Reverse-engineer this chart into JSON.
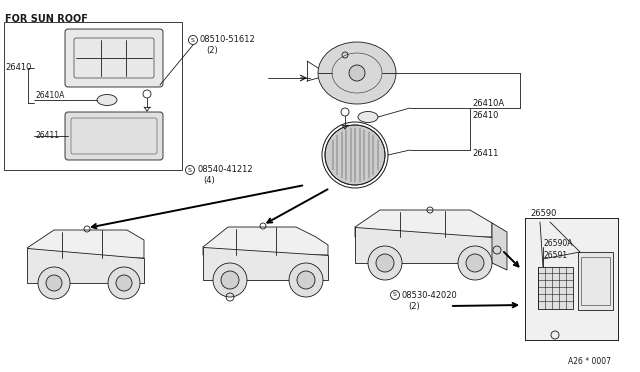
{
  "bg_color": "#ffffff",
  "line_color": "#1a1a1a",
  "text_color": "#1a1a1a",
  "figsize": [
    6.4,
    3.72
  ],
  "dpi": 100,
  "labels": {
    "for_sun_roof": "FOR SUN ROOF",
    "26410": "26410",
    "26410A": "26410A",
    "26411": "26411",
    "08510": "08510-51612",
    "08510_qty": "(2)",
    "08540": "08540-41212",
    "08540_qty": "(4)",
    "08530": "08530-42020",
    "08530_qty": "(2)",
    "26590": "26590",
    "26590A": "26590A",
    "26591": "26591",
    "diagram_id": "A26 * 0007"
  }
}
